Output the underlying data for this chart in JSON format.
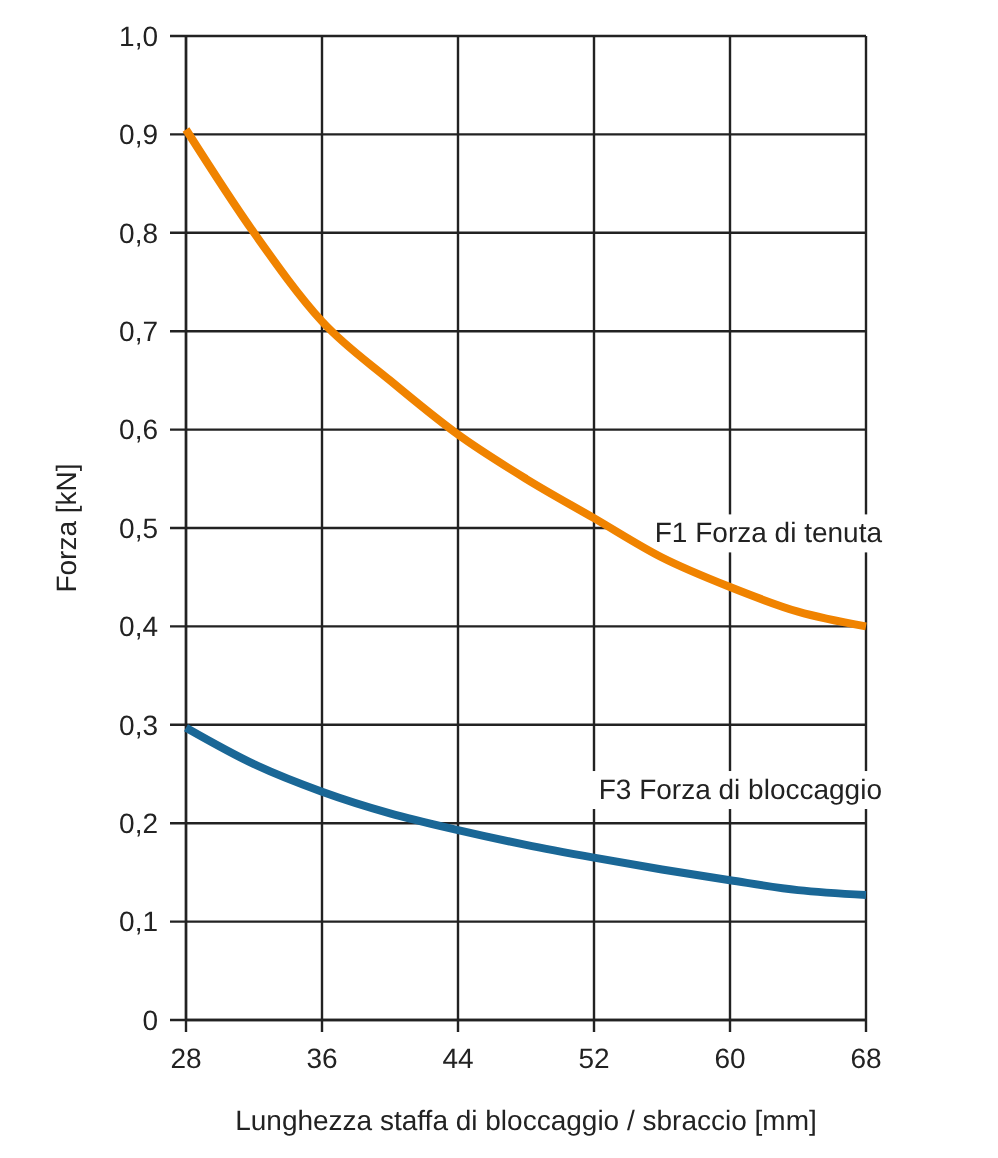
{
  "chart_data": {
    "type": "line",
    "xlabel": "Lunghezza staffa di bloccaggio / sbraccio [mm]",
    "ylabel": "Forza [kN]",
    "xlim": [
      28,
      68
    ],
    "xticks": [
      28,
      36,
      44,
      52,
      60,
      68
    ],
    "ylim": [
      0,
      1
    ],
    "yticks": [
      0,
      {
        "value": 0.1,
        "label": "0,1"
      },
      {
        "value": 0.2,
        "label": "0,2"
      },
      {
        "value": 0.3,
        "label": "0,3"
      },
      {
        "value": 0.4,
        "label": "0,4"
      },
      {
        "value": 0.5,
        "label": "0,5"
      },
      {
        "value": 0.6,
        "label": "0,6"
      },
      {
        "value": 0.7,
        "label": "0,7"
      },
      {
        "value": 0.8,
        "label": "0,8"
      },
      {
        "value": 0.9,
        "label": "0,9"
      },
      {
        "value": 1,
        "label": "1,0"
      }
    ],
    "grid": true,
    "legend": false,
    "marker": "none",
    "line_style": "solid",
    "x": [
      28,
      32,
      36,
      40,
      44,
      48,
      52,
      56,
      60,
      64,
      68
    ],
    "series": [
      {
        "name": "F1 Forza di tenuta",
        "color": "#f08300",
        "values": [
          0.905,
          0.8,
          0.71,
          0.65,
          0.595,
          0.55,
          0.51,
          0.47,
          0.44,
          0.415,
          0.4
        ]
      },
      {
        "name": "F3 Forza di bloccaggio",
        "color": "#1a6796",
        "values": [
          0.297,
          0.26,
          0.232,
          0.21,
          0.193,
          0.178,
          0.165,
          0.153,
          0.142,
          0.132,
          0.127
        ]
      }
    ]
  }
}
